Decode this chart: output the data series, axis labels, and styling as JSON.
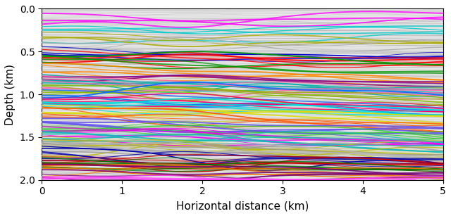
{
  "xlim": [
    0,
    5
  ],
  "ylim": [
    2.0,
    0.0
  ],
  "xlabel": "Horizontal distance (km)",
  "ylabel": "Depth (km)",
  "yticks": [
    0.0,
    0.5,
    1.0,
    1.5,
    2.0
  ],
  "xticks": [
    0,
    1,
    2,
    3,
    4,
    5
  ],
  "figsize": [
    6.4,
    3.07
  ],
  "dpi": 100,
  "color_cycle": [
    "#ff00ff",
    "#00cccc",
    "#aaaa00",
    "#aaaaaa",
    "#cccccc",
    "#0000cc",
    "#ff0000",
    "#009900",
    "#ff8800",
    "#880088",
    "#00aaaa",
    "#ff66aa",
    "#88bb00",
    "#0066ff",
    "#ff0066",
    "#00dddd",
    "#dddd00",
    "#ff5500",
    "#6655ee",
    "#33cc33",
    "#ee00ee",
    "#11bbbb",
    "#bbbb11",
    "#999999",
    "#bbbbbb",
    "#0000aa",
    "#cc0000",
    "#007700",
    "#ee7700",
    "#770077",
    "#ff44ff",
    "#44ffff",
    "#cccc44",
    "#ff8844",
    "#8844ff",
    "#44ff88",
    "#ff4488",
    "#88ff44",
    "#4488ff",
    "#cc44cc",
    "#44cccc",
    "#cccc00",
    "#cc6644",
    "#44cc66",
    "#6644cc"
  ]
}
